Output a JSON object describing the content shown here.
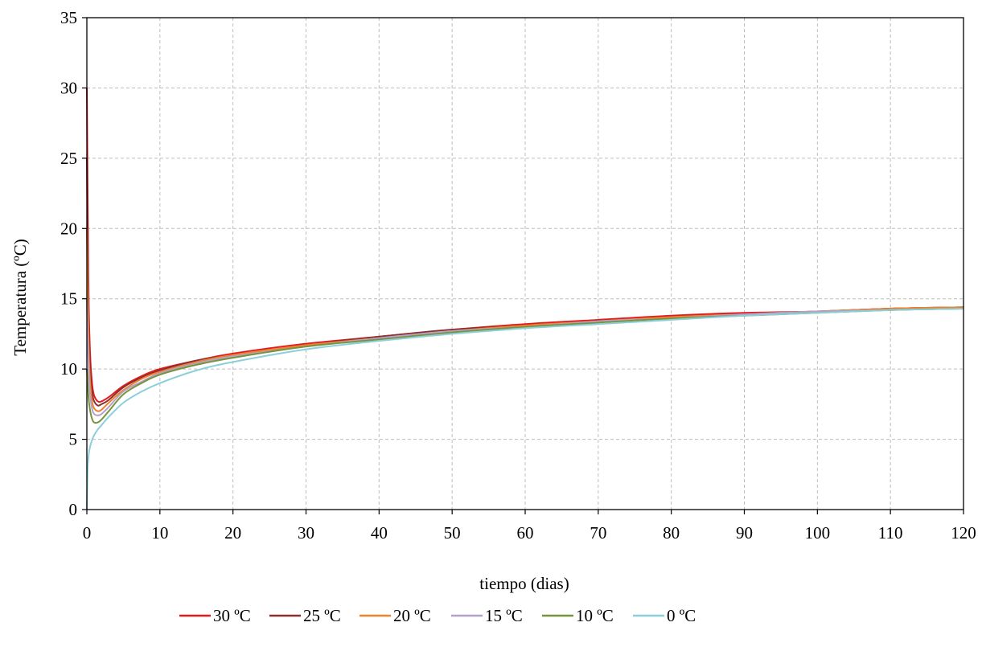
{
  "chart_data": {
    "type": "line",
    "title": "",
    "xlabel": "tiempo (dias)",
    "ylabel": "Temperatura (ºC)",
    "xlim": [
      0,
      120
    ],
    "ylim": [
      0,
      35
    ],
    "xticks": [
      0,
      10,
      20,
      30,
      40,
      50,
      60,
      70,
      80,
      90,
      100,
      110,
      120
    ],
    "yticks": [
      0,
      5,
      10,
      15,
      20,
      25,
      30,
      35
    ],
    "grid": true,
    "legend_position": "bottom",
    "x": [
      0,
      0.1,
      0.2,
      0.3,
      0.5,
      0.75,
      1,
      1.5,
      2,
      3,
      5,
      7.5,
      10,
      15,
      20,
      30,
      40,
      50,
      60,
      70,
      80,
      90,
      100,
      110,
      120
    ],
    "series": [
      {
        "name": "30 ºC",
        "color": "#e41a1c",
        "values": [
          30,
          23,
          17,
          13.5,
          10.5,
          8.8,
          8.1,
          7.7,
          7.7,
          8.0,
          8.8,
          9.5,
          10.0,
          10.6,
          11.1,
          11.8,
          12.3,
          12.8,
          13.2,
          13.5,
          13.8,
          14.0,
          14.1,
          14.3,
          14.4
        ]
      },
      {
        "name": "25 ºC",
        "color": "#8b2f2f",
        "values": [
          25,
          19.5,
          15,
          12,
          9.6,
          8.2,
          7.7,
          7.4,
          7.5,
          7.8,
          8.7,
          9.4,
          9.9,
          10.6,
          11.0,
          11.7,
          12.3,
          12.8,
          13.1,
          13.4,
          13.7,
          13.9,
          14.1,
          14.3,
          14.4
        ]
      },
      {
        "name": "20 ºC",
        "color": "#f0812e",
        "values": [
          20,
          16,
          12.8,
          10.6,
          8.7,
          7.6,
          7.2,
          7.0,
          7.1,
          7.6,
          8.5,
          9.3,
          9.8,
          10.5,
          11.0,
          11.7,
          12.2,
          12.7,
          13.1,
          13.4,
          13.7,
          13.9,
          14.1,
          14.3,
          14.4
        ]
      },
      {
        "name": "15 ºC",
        "color": "#b3a2c7",
        "values": [
          15,
          12.5,
          10.5,
          9.2,
          7.9,
          7.1,
          6.8,
          6.7,
          6.8,
          7.3,
          8.4,
          9.1,
          9.7,
          10.4,
          10.9,
          11.6,
          12.2,
          12.7,
          13.0,
          13.4,
          13.6,
          13.9,
          14.1,
          14.2,
          14.3
        ]
      },
      {
        "name": "10 ºC",
        "color": "#77933c",
        "values": [
          10,
          9,
          8.2,
          7.6,
          6.9,
          6.4,
          6.2,
          6.2,
          6.4,
          7.0,
          8.2,
          9.0,
          9.6,
          10.3,
          10.8,
          11.6,
          12.1,
          12.6,
          13.0,
          13.3,
          13.6,
          13.8,
          14.0,
          14.2,
          14.3
        ]
      },
      {
        "name": "0 ºC",
        "color": "#8ccfd8",
        "values": [
          0,
          2.8,
          3.6,
          4.1,
          4.6,
          5.0,
          5.3,
          5.7,
          6.0,
          6.6,
          7.6,
          8.4,
          9.0,
          9.9,
          10.5,
          11.4,
          12.0,
          12.5,
          12.9,
          13.2,
          13.5,
          13.8,
          14.0,
          14.2,
          14.3
        ]
      }
    ]
  }
}
